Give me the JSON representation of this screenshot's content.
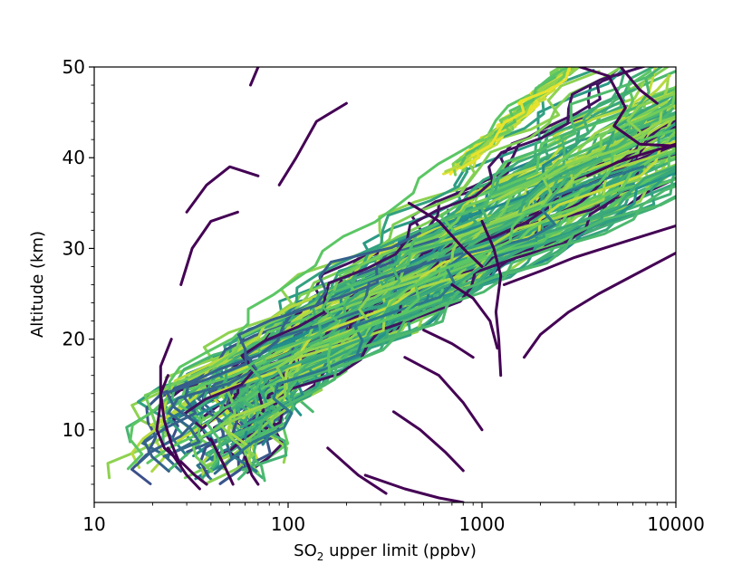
{
  "chart_data": {
    "type": "line",
    "title": "",
    "xlabel": {
      "prefix": "SO",
      "subscript": "2",
      "suffix": " upper limit (ppbv)"
    },
    "ylabel": "Altitude (km)",
    "xscale": "log",
    "xlim": [
      10,
      10000
    ],
    "ylim": [
      2,
      50
    ],
    "xticks": [
      {
        "value": 10,
        "label": "10"
      },
      {
        "value": 100,
        "label": "100"
      },
      {
        "value": 1000,
        "label": "1000"
      },
      {
        "value": 10000,
        "label": "10000"
      }
    ],
    "yticks": [
      {
        "value": 10,
        "label": "10"
      },
      {
        "value": 20,
        "label": "20"
      },
      {
        "value": 30,
        "label": "30"
      },
      {
        "value": 40,
        "label": "40"
      },
      {
        "value": 50,
        "label": "50"
      }
    ],
    "grid": false,
    "legend": "none",
    "colormap": [
      "#440154",
      "#3b528b",
      "#21918c",
      "#5ec962",
      "#fde725"
    ],
    "density_note": "color indicates profile density (viridis)",
    "highlighted_series": [
      {
        "points": [
          [
            64,
            48
          ],
          [
            70,
            50
          ]
        ]
      },
      {
        "points": [
          [
            90,
            37
          ],
          [
            110,
            40
          ],
          [
            140,
            44
          ],
          [
            200,
            46
          ]
        ]
      },
      {
        "points": [
          [
            30,
            34
          ],
          [
            38,
            37
          ],
          [
            50,
            39
          ],
          [
            70,
            38
          ]
        ]
      },
      {
        "points": [
          [
            28,
            26
          ],
          [
            32,
            30
          ],
          [
            40,
            33
          ],
          [
            55,
            34
          ]
        ]
      },
      {
        "points": [
          [
            1300,
            26
          ],
          [
            2000,
            27.5
          ],
          [
            3000,
            29
          ],
          [
            5000,
            30.5
          ],
          [
            10000,
            32.5
          ]
        ]
      },
      {
        "points": [
          [
            1650,
            18
          ],
          [
            2000,
            20.5
          ],
          [
            2800,
            23
          ],
          [
            4000,
            25
          ],
          [
            6000,
            27
          ],
          [
            10000,
            29.5
          ]
        ]
      },
      {
        "points": [
          [
            3500,
            38
          ],
          [
            5000,
            39.5
          ],
          [
            7000,
            40.5
          ],
          [
            10000,
            41.5
          ]
        ]
      },
      {
        "points": [
          [
            3200,
            50
          ],
          [
            4500,
            49
          ],
          [
            5500,
            45.5
          ],
          [
            4800,
            43.5
          ],
          [
            6500,
            41.5
          ],
          [
            10000,
            41.3
          ]
        ]
      },
      {
        "points": [
          [
            5200,
            50
          ],
          [
            6500,
            47.5
          ],
          [
            8000,
            46
          ]
        ]
      },
      {
        "points": [
          [
            1000,
            33
          ],
          [
            1150,
            30
          ],
          [
            1250,
            27
          ],
          [
            1180,
            23
          ],
          [
            1220,
            20
          ],
          [
            1250,
            16
          ]
        ]
      },
      {
        "points": [
          [
            700,
            26
          ],
          [
            900,
            24.5
          ],
          [
            1100,
            22
          ],
          [
            1200,
            19
          ]
        ]
      },
      {
        "points": [
          [
            420,
            35
          ],
          [
            600,
            33
          ],
          [
            800,
            30
          ],
          [
            1000,
            28
          ]
        ]
      },
      {
        "points": [
          [
            500,
            21
          ],
          [
            700,
            19.5
          ],
          [
            900,
            18
          ]
        ]
      },
      {
        "points": [
          [
            400,
            18
          ],
          [
            600,
            16
          ],
          [
            800,
            13
          ],
          [
            1000,
            10
          ]
        ]
      },
      {
        "points": [
          [
            350,
            12
          ],
          [
            480,
            10
          ],
          [
            650,
            7.5
          ],
          [
            800,
            5.5
          ]
        ]
      },
      {
        "points": [
          [
            160,
            8
          ],
          [
            230,
            5
          ],
          [
            320,
            3
          ]
        ]
      },
      {
        "points": [
          [
            250,
            5
          ],
          [
            400,
            3.5
          ],
          [
            600,
            2.5
          ],
          [
            800,
            2
          ]
        ]
      },
      {
        "points": [
          [
            24,
            8
          ],
          [
            30,
            5
          ],
          [
            35,
            3.5
          ]
        ]
      },
      {
        "points": [
          [
            28,
            6.5
          ],
          [
            33,
            5
          ],
          [
            38,
            4
          ]
        ]
      },
      {
        "points": [
          [
            60,
            7
          ],
          [
            65,
            5
          ],
          [
            70,
            4
          ]
        ]
      },
      {
        "points": [
          [
            40,
            9
          ],
          [
            47,
            6
          ],
          [
            52,
            4
          ]
        ]
      },
      {
        "points": [
          [
            25,
            20
          ],
          [
            22,
            17
          ],
          [
            22,
            13
          ],
          [
            21,
            10
          ],
          [
            23,
            8
          ],
          [
            26,
            7
          ]
        ]
      },
      {
        "points": [
          [
            24,
            16
          ],
          [
            22,
            14
          ],
          [
            23,
            11
          ],
          [
            25,
            8.5
          ],
          [
            28,
            6
          ]
        ]
      }
    ]
  }
}
